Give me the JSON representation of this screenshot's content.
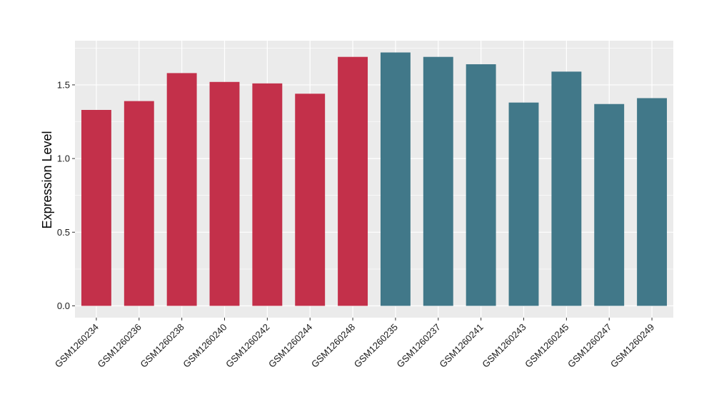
{
  "chart_data": {
    "type": "bar",
    "title": "",
    "xlabel": "",
    "ylabel": "Expression Level",
    "ylim": [
      -0.08,
      1.8
    ],
    "y_ticks": [
      0.0,
      0.5,
      1.0,
      1.5
    ],
    "y_tick_labels": [
      "0.0",
      "0.5",
      "1.0",
      "1.5"
    ],
    "grid": true,
    "legend": "none",
    "categories": [
      "GSM1260234",
      "GSM1260236",
      "GSM1260238",
      "GSM1260240",
      "GSM1260242",
      "GSM1260244",
      "GSM1260248",
      "GSM1260235",
      "GSM1260237",
      "GSM1260241",
      "GSM1260243",
      "GSM1260245",
      "GSM1260247",
      "GSM1260249"
    ],
    "values": [
      1.33,
      1.39,
      1.58,
      1.52,
      1.51,
      1.44,
      1.69,
      1.72,
      1.69,
      1.64,
      1.38,
      1.59,
      1.37,
      1.41
    ],
    "groups": [
      0,
      0,
      0,
      0,
      0,
      0,
      0,
      1,
      1,
      1,
      1,
      1,
      1,
      1
    ],
    "group_colors": [
      "#c3304a",
      "#417889"
    ],
    "panel_color": "#ebebeb",
    "grid_color": "#ffffff"
  }
}
